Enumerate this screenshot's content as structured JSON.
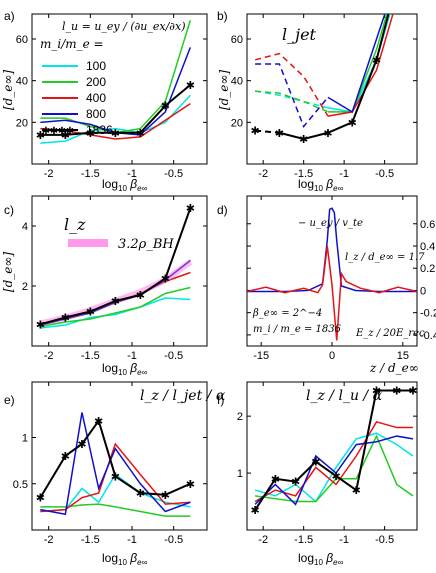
{
  "figure": {
    "panels_labels": [
      "a)",
      "b)",
      "c)",
      "d)",
      "e)",
      "f)"
    ],
    "xlabel_main": "log",
    "xlabel_sub": "10",
    "xlabel_tail": "β",
    "xlabel_subsub": "e∞"
  },
  "chart_data": [
    {
      "panel": "a)",
      "type": "line",
      "ylabel": "[d_e∞]",
      "annotation": "l_u = u_ey / (∂u_ex/∂x)",
      "legend_title": "m_i/m_e =",
      "xlim": [
        -2.2,
        -0.1
      ],
      "ylim": [
        0,
        72
      ],
      "xticks": [
        -2,
        -1.5,
        -1,
        -0.5
      ],
      "xticklabels": [
        "-2",
        "-1.5",
        "-1",
        "-0.5"
      ],
      "yticks": [
        20,
        40,
        60
      ],
      "yticklabels": [
        "20",
        "40",
        "60"
      ],
      "x": [
        -2.1,
        -1.8,
        -1.5,
        -1.2,
        -0.9,
        -0.6,
        -0.3
      ],
      "series": [
        {
          "name": "100",
          "color": "#00e5e5",
          "values": [
            10,
            11,
            16,
            17,
            15,
            20,
            33
          ]
        },
        {
          "name": "200",
          "color": "#22cc22",
          "values": [
            22,
            22,
            18,
            15,
            17,
            30,
            69
          ]
        },
        {
          "name": "400",
          "color": "#e51414",
          "values": [
            17,
            16,
            14,
            12,
            13,
            21,
            29
          ]
        },
        {
          "name": "800",
          "color": "#1010cc",
          "values": [
            20,
            21,
            19,
            15,
            14,
            25,
            56
          ]
        },
        {
          "name": "1836",
          "color": "#000000",
          "marker": "star",
          "values": [
            14,
            14,
            15,
            15,
            15,
            28,
            38
          ]
        }
      ]
    },
    {
      "panel": "b)",
      "type": "line",
      "ylabel": "[d_e∞]",
      "annotation": "l_jet",
      "xlim": [
        -2.2,
        -0.1
      ],
      "ylim": [
        0,
        72
      ],
      "xticks": [
        -2,
        -1.5,
        -1,
        -0.5
      ],
      "xticklabels": [
        "-2",
        "-1.5",
        "-1",
        "-0.5"
      ],
      "yticks": [
        20,
        40,
        60
      ],
      "yticklabels": [
        "20",
        "40",
        "60"
      ],
      "x": [
        -2.1,
        -1.8,
        -1.5,
        -1.2,
        -0.9,
        -0.6,
        -0.3
      ],
      "series": [
        {
          "color": "#00e5e5",
          "dashed_until": 3,
          "values": [
            35,
            33,
            30,
            27,
            25,
            50,
            90
          ]
        },
        {
          "color": "#22cc22",
          "dashed_until": 3,
          "values": [
            35,
            34,
            30,
            25,
            25,
            55,
            95
          ]
        },
        {
          "color": "#e51414",
          "dashed_until": 3,
          "values": [
            50,
            53,
            42,
            23,
            25,
            45,
            85
          ]
        },
        {
          "color": "#1010cc",
          "dashed_until": 3,
          "values": [
            48,
            48,
            18,
            32,
            25,
            60,
            95
          ]
        },
        {
          "color": "#000000",
          "marker": "star",
          "dashed_until": 1,
          "values": [
            16,
            15,
            12,
            15,
            20,
            50,
            95
          ]
        }
      ]
    },
    {
      "panel": "c)",
      "type": "line",
      "ylabel": "[d_e∞]",
      "annotation": "l_z",
      "band_label": "3.2ρ_BH",
      "xlim": [
        -2.2,
        -0.1
      ],
      "ylim": [
        0,
        5
      ],
      "xticks": [
        -2,
        -1.5,
        -1,
        -0.5
      ],
      "xticklabels": [
        "-2",
        "-1.5",
        "-1",
        "-0.5"
      ],
      "yticks": [
        2,
        4
      ],
      "yticklabels": [
        "2",
        "4"
      ],
      "x": [
        -2.1,
        -1.8,
        -1.5,
        -1.2,
        -0.9,
        -0.6,
        -0.3
      ],
      "series": [
        {
          "color": "#00e5e5",
          "values": [
            0.6,
            0.7,
            0.95,
            1.05,
            1.3,
            1.6,
            1.55
          ]
        },
        {
          "color": "#22cc22",
          "values": [
            0.65,
            0.8,
            0.9,
            1.1,
            1.3,
            1.75,
            1.95
          ]
        },
        {
          "color": "#e51414",
          "values": [
            0.7,
            0.95,
            1.15,
            1.45,
            1.75,
            2.15,
            2.45
          ]
        },
        {
          "color": "#1010cc",
          "values": [
            0.7,
            0.9,
            1.1,
            1.45,
            1.7,
            2.2,
            2.85
          ]
        },
        {
          "color": "#ff66dd",
          "band": true,
          "values": [
            0.75,
            0.95,
            1.2,
            1.5,
            1.8,
            2.2,
            2.8
          ]
        },
        {
          "color": "#000000",
          "marker": "star",
          "values": [
            0.72,
            0.95,
            1.15,
            1.5,
            1.7,
            2.25,
            4.6
          ]
        }
      ]
    },
    {
      "panel": "d)",
      "type": "line",
      "annotation_top": "− u_ey / v_te",
      "annotation_lz": "l_z / d_e∞ = 1.7",
      "annotation_beta": "β_e∞ = 2^−4",
      "annotation_mass": "m_i / m_e = 1836",
      "annotation_ez": "E_z / 20E_rec",
      "xlabel": "z / d_e∞",
      "xlim": [
        -18,
        18
      ],
      "ylim": [
        -0.5,
        0.85
      ],
      "xticks": [
        -15,
        0,
        15
      ],
      "xticklabels": [
        "-15",
        "0",
        "15"
      ],
      "yticks": [
        -0.4,
        -0.2,
        0,
        0.2,
        0.4,
        0.6
      ],
      "yticklabels": [
        "-0.4",
        "-0.2",
        "0",
        "0.2",
        "0.4",
        "0.6"
      ],
      "series": [
        {
          "name": "−u_ey/v_te",
          "color": "#1010cc",
          "x": [
            -18,
            -10,
            -5,
            -2,
            -1,
            -0.5,
            0,
            0.5,
            1,
            2,
            5,
            10,
            18
          ],
          "values": [
            -0.01,
            -0.01,
            0.0,
            0.06,
            0.45,
            0.73,
            0.74,
            0.7,
            0.45,
            0.04,
            0.0,
            -0.01,
            -0.01
          ]
        },
        {
          "name": "E_z/20E_rec",
          "color": "#e51414",
          "x": [
            -18,
            -14,
            -10,
            -6,
            -3,
            -2,
            -1,
            0,
            0.5,
            1,
            1.5,
            2,
            3,
            6,
            10,
            14,
            18
          ],
          "values": [
            -0.01,
            0.03,
            -0.02,
            0.02,
            -0.02,
            0.05,
            0.4,
            0.05,
            -0.2,
            -0.45,
            -0.15,
            0.15,
            0.08,
            0.02,
            -0.02,
            0.03,
            -0.01
          ]
        }
      ]
    },
    {
      "panel": "e)",
      "type": "line",
      "annotation": "l_z / l_jet / α",
      "xlim": [
        -2.2,
        -0.1
      ],
      "ylim": [
        0,
        1.6
      ],
      "xticks": [
        -2,
        -1.5,
        -1,
        -0.5
      ],
      "xticklabels": [
        "-2",
        "-1.5",
        "-1",
        "-0.5"
      ],
      "yticks": [
        0.5,
        1
      ],
      "yticklabels": [
        "0.5",
        "1"
      ],
      "x": [
        -2.1,
        -1.8,
        -1.6,
        -1.4,
        -1.2,
        -0.9,
        -0.6,
        -0.3
      ],
      "series": [
        {
          "color": "#00e5e5",
          "values": [
            0.2,
            0.22,
            0.45,
            0.3,
            0.6,
            0.4,
            0.3,
            0.25
          ]
        },
        {
          "color": "#22cc22",
          "values": [
            0.25,
            0.25,
            0.27,
            0.28,
            0.25,
            0.2,
            0.15,
            0.15
          ]
        },
        {
          "color": "#e51414",
          "values": [
            0.2,
            0.22,
            0.35,
            0.4,
            0.93,
            0.6,
            0.28,
            0.3
          ]
        },
        {
          "color": "#1010cc",
          "values": [
            0.22,
            0.17,
            1.27,
            0.45,
            0.88,
            0.5,
            0.2,
            0.3
          ]
        },
        {
          "color": "#000000",
          "marker": "star",
          "values": [
            0.35,
            0.8,
            0.93,
            1.18,
            0.58,
            0.4,
            0.38,
            0.5
          ]
        }
      ]
    },
    {
      "panel": "f)",
      "type": "line",
      "annotation": "l_z / l_u / α",
      "xlim": [
        -2.2,
        -0.1
      ],
      "ylim": [
        0,
        2.6
      ],
      "xticks": [
        -2,
        -1.5,
        -1,
        -0.5
      ],
      "xticklabels": [
        "-2",
        "-1.5",
        "-1",
        "-0.5"
      ],
      "yticks": [
        1,
        2
      ],
      "yticklabels": [
        "1",
        "2"
      ],
      "x": [
        -2.1,
        -1.85,
        -1.6,
        -1.35,
        -1.1,
        -0.85,
        -0.6,
        -0.35,
        -0.15
      ],
      "series": [
        {
          "color": "#00e5e5",
          "values": [
            0.7,
            0.6,
            0.8,
            0.5,
            1.1,
            1.6,
            1.7,
            1.5,
            1.3
          ]
        },
        {
          "color": "#22cc22",
          "values": [
            0.6,
            0.55,
            0.5,
            0.5,
            0.9,
            0.9,
            1.65,
            0.8,
            0.6
          ]
        },
        {
          "color": "#e51414",
          "values": [
            0.5,
            0.7,
            0.6,
            1.1,
            0.8,
            1.3,
            1.9,
            1.8,
            1.8
          ]
        },
        {
          "color": "#1010cc",
          "values": [
            0.45,
            0.8,
            0.45,
            1.3,
            1.0,
            1.5,
            1.55,
            1.65,
            1.6
          ]
        },
        {
          "color": "#000000",
          "marker": "star",
          "values": [
            0.35,
            0.9,
            0.85,
            1.2,
            0.95,
            0.7,
            2.45,
            2.45,
            2.45
          ]
        }
      ]
    }
  ]
}
